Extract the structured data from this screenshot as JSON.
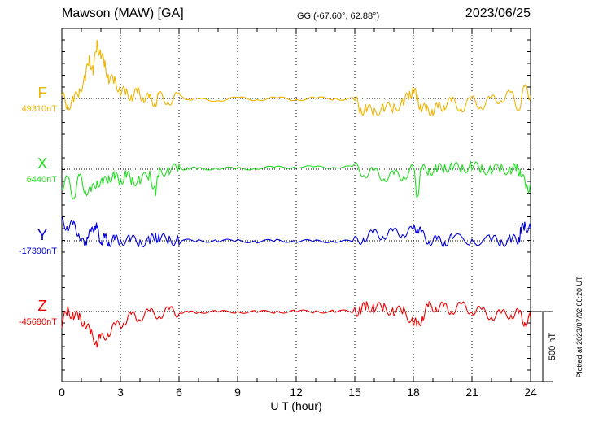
{
  "header": {
    "station": "Mawson (MAW)  [GA]",
    "coords": "GG (-67.60°,  62.88°)",
    "date": "2023/06/25"
  },
  "chart_data": {
    "type": "line",
    "xlabel": "U T (hour)",
    "xlim": [
      0,
      24
    ],
    "xticks": [
      0,
      3,
      6,
      9,
      12,
      15,
      18,
      21,
      24
    ],
    "scale_bar_label": "500 nT",
    "scale_bar_nT": 500,
    "footer": "Plotted at 2023/07/02 00:20 UT",
    "series": [
      {
        "name": "F",
        "baseline_label": "49310nT",
        "baseline": 49310,
        "color": "#f0b400",
        "x": [
          0,
          0.3,
          0.6,
          0.9,
          1.2,
          1.4,
          1.6,
          1.8,
          2.0,
          2.2,
          2.4,
          2.7,
          3.0,
          3.3,
          3.6,
          3.9,
          4.2,
          4.5,
          4.8,
          5.0,
          5.5,
          6,
          6.5,
          7,
          8,
          9,
          10,
          11,
          12,
          13,
          14,
          15,
          15.3,
          15.6,
          16,
          16.5,
          17,
          17.5,
          17.8,
          18.0,
          18.2,
          18.4,
          18.7,
          19.0,
          19.3,
          19.6,
          20,
          20.5,
          21,
          21.5,
          22,
          22.5,
          23,
          23.4,
          23.7,
          24
        ],
        "y": [
          49330,
          49260,
          49290,
          49370,
          49450,
          49600,
          49500,
          49700,
          49620,
          49550,
          49450,
          49430,
          49370,
          49340,
          49330,
          49350,
          49320,
          49300,
          49290,
          49320,
          49300,
          49320,
          49310,
          49300,
          49300,
          49310,
          49305,
          49310,
          49305,
          49310,
          49310,
          49305,
          49230,
          49230,
          49220,
          49240,
          49240,
          49290,
          49330,
          49380,
          49300,
          49250,
          49220,
          49230,
          49240,
          49270,
          49280,
          49250,
          49290,
          49270,
          49290,
          49320,
          49330,
          49250,
          49380,
          49330
        ]
      },
      {
        "name": "X",
        "baseline_label": "6440nT",
        "baseline": 6440,
        "color": "#22dd22",
        "x": [
          0,
          0.3,
          0.6,
          0.9,
          1.2,
          1.5,
          1.8,
          2.1,
          2.4,
          2.7,
          3.0,
          3.3,
          3.6,
          4,
          4.5,
          4.8,
          5,
          5.5,
          6,
          6.5,
          7,
          8,
          9,
          10,
          11,
          12,
          13,
          14,
          15,
          15.5,
          16,
          16.5,
          17,
          17.5,
          18,
          18.2,
          18.4,
          18.8,
          19.2,
          19.6,
          20,
          20.5,
          21,
          21.5,
          22,
          22.5,
          23,
          23.3,
          23.5,
          23.8,
          24
        ],
        "y": [
          6330,
          6360,
          6250,
          6380,
          6300,
          6270,
          6360,
          6330,
          6390,
          6380,
          6360,
          6400,
          6360,
          6360,
          6400,
          6280,
          6420,
          6440,
          6440,
          6450,
          6440,
          6450,
          6440,
          6450,
          6450,
          6460,
          6450,
          6460,
          6450,
          6420,
          6410,
          6390,
          6390,
          6400,
          6440,
          6250,
          6430,
          6440,
          6430,
          6460,
          6450,
          6450,
          6460,
          6440,
          6440,
          6440,
          6440,
          6440,
          6430,
          6290,
          6330
        ]
      },
      {
        "name": "Y",
        "baseline_label": "-17390nT",
        "baseline": -17390,
        "color": "#0000dd",
        "x": [
          0,
          0.3,
          0.6,
          0.9,
          1.2,
          1.3,
          1.5,
          1.7,
          1.8,
          2.0,
          2.2,
          2.4,
          2.7,
          3,
          3.5,
          4,
          4.5,
          4.8,
          5,
          5.5,
          6,
          7,
          8,
          9,
          10,
          11,
          12,
          13,
          14,
          15,
          15.5,
          16,
          16.5,
          17,
          17.5,
          18,
          18.2,
          18.4,
          18.8,
          19.2,
          19.6,
          20,
          21,
          22,
          22.5,
          23,
          23.4,
          23.5,
          23.7,
          24
        ],
        "y": [
          -17260,
          -17280,
          -17290,
          -17330,
          -17460,
          -17330,
          -17350,
          -17260,
          -17320,
          -17380,
          -17380,
          -17390,
          -17390,
          -17380,
          -17390,
          -17390,
          -17400,
          -17350,
          -17380,
          -17380,
          -17390,
          -17390,
          -17390,
          -17390,
          -17395,
          -17390,
          -17390,
          -17395,
          -17390,
          -17400,
          -17360,
          -17350,
          -17340,
          -17340,
          -17320,
          -17330,
          -17280,
          -17350,
          -17380,
          -17395,
          -17390,
          -17380,
          -17380,
          -17390,
          -17390,
          -17390,
          -17380,
          -17320,
          -17280,
          -17300
        ]
      },
      {
        "name": "Z",
        "baseline_label": "-45680nT",
        "baseline": -45680,
        "color": "#ee0000",
        "x": [
          0,
          0.3,
          0.6,
          0.9,
          1.2,
          1.5,
          1.8,
          2.0,
          2.4,
          2.8,
          3.2,
          3.6,
          4,
          4.5,
          5,
          5.5,
          6,
          6.5,
          7,
          8,
          9,
          10,
          11,
          12,
          13,
          14,
          15,
          15.3,
          15.6,
          16,
          16.5,
          17,
          17.5,
          18,
          18.2,
          18.5,
          18.8,
          19.2,
          19.6,
          20,
          20.5,
          21,
          21.5,
          22,
          22.5,
          23,
          23.4,
          23.7,
          24
        ],
        "y": [
          -45760,
          -45680,
          -45700,
          -45730,
          -45760,
          -45850,
          -45890,
          -45880,
          -45820,
          -45790,
          -45740,
          -45720,
          -45710,
          -45700,
          -45690,
          -45685,
          -45680,
          -45690,
          -45680,
          -45685,
          -45680,
          -45685,
          -45680,
          -45680,
          -45680,
          -45680,
          -45680,
          -45670,
          -45640,
          -45650,
          -45660,
          -45670,
          -45690,
          -45740,
          -45790,
          -45700,
          -45650,
          -45640,
          -45660,
          -45660,
          -45650,
          -45660,
          -45690,
          -45700,
          -45710,
          -45690,
          -45700,
          -45750,
          -45730
        ]
      }
    ]
  }
}
